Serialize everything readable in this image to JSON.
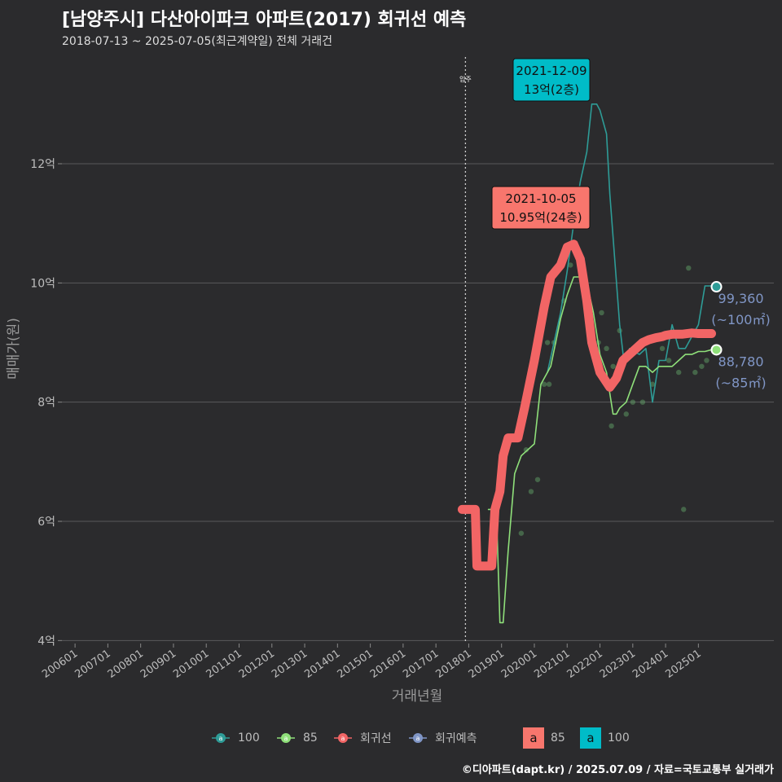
{
  "header": {
    "title": "[남양주시] 다산아이파크 아파트(2017) 회귀선 예측",
    "subtitle": "2018-07-13 ~ 2025-07-05(최근계약일) 전체 거래건"
  },
  "caption": "©디아파트(dapt.kr) / 2025.07.09 / 자료=국토교통부 실거래가",
  "legend": {
    "series_100": "100",
    "series_85": "85",
    "series_reg": "회귀선",
    "series_pred": "회귀예측",
    "box_label": "a",
    "box_85": "85",
    "box_100": "100"
  },
  "colors": {
    "background": "#2b2b2d",
    "grid": "#5a5a5c",
    "s100": "#2e9c97",
    "s85": "#8fe07a",
    "regression": "#f26565",
    "prediction": "#8096c6",
    "label100": "#00bcc8",
    "label85": "#f8766d"
  },
  "chart_data": {
    "type": "line",
    "title": "[남양주시] 다산아이파크 아파트(2017) 회귀선 예측",
    "xlabel": "거래년월",
    "ylabel": "매매가(원)",
    "xlim": [
      2005.6,
      2027.3
    ],
    "ylim": [
      3.95,
      13.9
    ],
    "x_ticks": [
      2006,
      2007,
      2008,
      2009,
      2010,
      2011,
      2012,
      2013,
      2014,
      2015,
      2016,
      2017,
      2018,
      2019,
      2020,
      2021,
      2022,
      2023,
      2024,
      2025
    ],
    "x_tick_labels": [
      "200601",
      "200701",
      "200801",
      "200901",
      "201001",
      "201101",
      "201201",
      "201301",
      "201401",
      "201501",
      "201601",
      "201701",
      "201801",
      "201901",
      "202001",
      "202101",
      "202201",
      "202301",
      "202401",
      "202501"
    ],
    "y_ticks": [
      4,
      6,
      8,
      10,
      12
    ],
    "y_tick_labels": [
      "4억",
      "6억",
      "8억",
      "10억",
      "12억"
    ],
    "vline": {
      "x": 2017.9,
      "label": "입주"
    },
    "series": [
      {
        "name": "100",
        "x": [
          2020.4,
          2020.6,
          2020.8,
          2021.0,
          2021.2,
          2021.4,
          2021.6,
          2021.75,
          2021.9,
          2022.0,
          2022.2,
          2022.3,
          2022.6,
          2022.75,
          2022.9,
          2023.2,
          2023.4,
          2023.6,
          2023.8,
          2024.0,
          2024.2,
          2024.4,
          2024.6,
          2024.8,
          2025.0,
          2025.2,
          2025.4
        ],
        "values": [
          8.5,
          9.0,
          9.5,
          10.2,
          11.0,
          11.7,
          12.2,
          13.0,
          13.0,
          12.9,
          12.5,
          11.5,
          9.3,
          8.6,
          8.9,
          8.8,
          8.9,
          8.0,
          8.7,
          8.7,
          9.3,
          8.9,
          8.9,
          9.1,
          9.3,
          9.95,
          9.95
        ]
      },
      {
        "name": "85",
        "x": [
          2018.6,
          2018.75,
          2018.85,
          2018.95,
          2019.05,
          2019.2,
          2019.4,
          2019.6,
          2019.8,
          2020.0,
          2020.2,
          2020.5,
          2020.8,
          2021.0,
          2021.2,
          2021.4,
          2021.6,
          2021.8,
          2022.0,
          2022.2,
          2022.4,
          2022.5,
          2022.6,
          2022.8,
          2023.0,
          2023.2,
          2023.4,
          2023.6,
          2023.8,
          2024.0,
          2024.2,
          2024.4,
          2024.6,
          2024.8,
          2025.0,
          2025.2,
          2025.4
        ],
        "values": [
          6.2,
          6.2,
          6.05,
          4.3,
          4.3,
          5.5,
          6.8,
          7.1,
          7.2,
          7.3,
          8.3,
          8.6,
          9.4,
          9.8,
          10.1,
          10.1,
          10.0,
          9.5,
          8.8,
          8.5,
          7.8,
          7.8,
          7.9,
          8.0,
          8.3,
          8.6,
          8.6,
          8.5,
          8.6,
          8.6,
          8.6,
          8.7,
          8.8,
          8.8,
          8.85,
          8.85,
          8.88
        ]
      },
      {
        "name": "회귀선",
        "x": [
          2017.8,
          2018.2,
          2018.25,
          2018.7,
          2018.8,
          2018.95,
          2019.05,
          2019.2,
          2019.4,
          2019.5,
          2019.7,
          2020.0,
          2020.3,
          2020.5,
          2020.8,
          2021.0,
          2021.2,
          2021.4,
          2021.6,
          2021.75,
          2022.0,
          2022.3,
          2022.5,
          2022.7,
          2022.9,
          2023.1,
          2023.3,
          2023.5,
          2023.7,
          2023.9,
          2024.0,
          2024.2,
          2024.5,
          2024.8,
          2025.0,
          2025.2,
          2025.4
        ],
        "values": [
          6.2,
          6.2,
          5.25,
          5.25,
          6.2,
          6.5,
          7.1,
          7.4,
          7.4,
          7.4,
          7.9,
          8.7,
          9.6,
          10.1,
          10.3,
          10.6,
          10.65,
          10.4,
          9.7,
          9.0,
          8.5,
          8.25,
          8.4,
          8.7,
          8.8,
          8.9,
          9.0,
          9.05,
          9.08,
          9.1,
          9.12,
          9.14,
          9.14,
          9.16,
          9.15,
          9.15,
          9.15
        ]
      },
      {
        "name": "회귀예측",
        "x": [],
        "values": []
      }
    ],
    "scatter": {
      "x": [
        2019.9,
        2020.1,
        2020.3,
        2020.4,
        2020.6,
        2020.9,
        2021.1,
        2021.3,
        2021.5,
        2021.7,
        2021.95,
        2022.05,
        2022.2,
        2022.4,
        2022.6,
        2022.8,
        2023.0,
        2023.3,
        2023.6,
        2023.9,
        2024.1,
        2024.4,
        2024.55,
        2024.7,
        2024.9,
        2025.1,
        2025.25,
        2019.6,
        2019.75,
        2020.45,
        2021.55,
        2022.35
      ],
      "values": [
        6.5,
        6.7,
        8.3,
        9.0,
        9.0,
        9.7,
        10.3,
        10.5,
        10.0,
        9.0,
        9.0,
        9.5,
        8.9,
        8.6,
        9.2,
        7.8,
        8.0,
        8.0,
        8.3,
        8.9,
        8.7,
        8.5,
        6.2,
        10.25,
        8.5,
        8.6,
        8.7,
        5.8,
        7.2,
        8.3,
        11.0,
        7.6
      ]
    },
    "annotations": [
      {
        "date": "2021-12-09",
        "text": "13억(2층)",
        "series": "100",
        "x": 2021.94,
        "y": 13.0
      },
      {
        "date": "2021-10-05",
        "text": "10.95억(24층)",
        "series": "85",
        "x": 2021.76,
        "y": 10.95
      }
    ],
    "end_labels": [
      {
        "value": "99,360",
        "area": "(~100㎡)",
        "series": "100",
        "x": 2025.55,
        "y": 9.936
      },
      {
        "value": "88,780",
        "area": "(~85㎡)",
        "series": "85",
        "x": 2025.55,
        "y": 8.878
      }
    ]
  }
}
